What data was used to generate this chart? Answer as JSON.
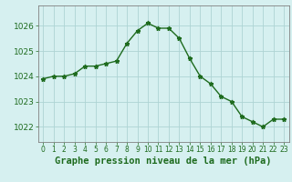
{
  "hours": [
    0,
    1,
    2,
    3,
    4,
    5,
    6,
    7,
    8,
    9,
    10,
    11,
    12,
    13,
    14,
    15,
    16,
    17,
    18,
    19,
    20,
    21,
    22,
    23
  ],
  "pressure": [
    1023.9,
    1024.0,
    1024.0,
    1024.1,
    1024.4,
    1024.4,
    1024.5,
    1024.6,
    1025.3,
    1025.8,
    1026.1,
    1025.9,
    1025.9,
    1025.5,
    1024.7,
    1024.0,
    1023.7,
    1023.2,
    1023.0,
    1022.4,
    1022.2,
    1022.0,
    1022.3,
    1022.3
  ],
  "line_color": "#1e6b1e",
  "marker": "*",
  "marker_size": 3.5,
  "bg_color": "#d6f0f0",
  "grid_color": "#aed4d4",
  "xlabel": "Graphe pression niveau de la mer (hPa)",
  "xlabel_color": "#1e6b1e",
  "tick_color": "#1e6b1e",
  "axis_color": "#808080",
  "yticks": [
    1022,
    1023,
    1024,
    1025,
    1026
  ],
  "ylim": [
    1021.4,
    1026.8
  ],
  "xlim": [
    -0.5,
    23.5
  ],
  "xtick_fontsize": 5.5,
  "ytick_fontsize": 6.5,
  "xlabel_fontsize": 7.5
}
